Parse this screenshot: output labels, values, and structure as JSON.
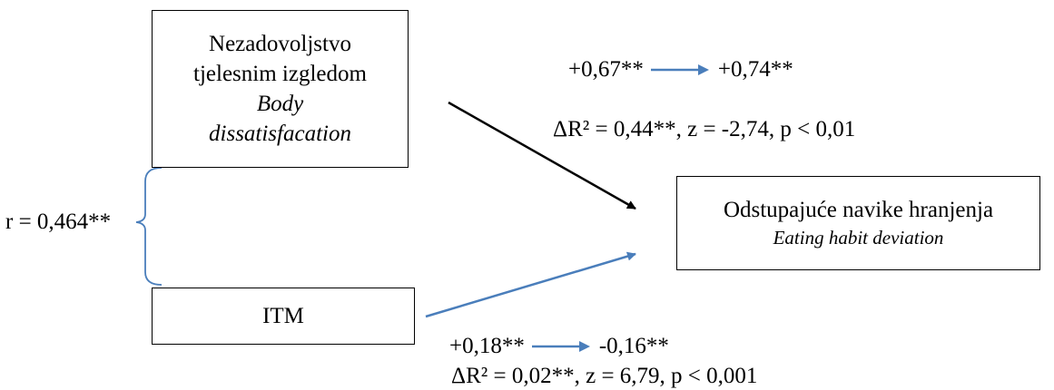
{
  "predictor_body": {
    "line1": "Nezadovoljstvo",
    "line2": "tjelesnim izgledom",
    "line3": "Body",
    "line4": "dissatisfacation"
  },
  "predictor_itm": {
    "label": "ITM"
  },
  "outcome": {
    "line1": "Odstupajuće navike hranjenja",
    "line2": "Eating habit deviation"
  },
  "path_body": {
    "coef_from": "+0,67**",
    "coef_to": "+0,74**",
    "stats": "ΔR² = 0,44**, z = -2,74, p < 0,01"
  },
  "path_itm": {
    "coef_from": "+0,18**",
    "coef_to": "-0,16**",
    "stats": "ΔR² = 0,02**, z = 6,79, p < 0,001"
  },
  "correlation": {
    "label": "r = 0,464**"
  },
  "colors": {
    "black_arrow": "#000000",
    "blue_arrow": "#4a7ebb",
    "brace": "#4a7ebb"
  }
}
